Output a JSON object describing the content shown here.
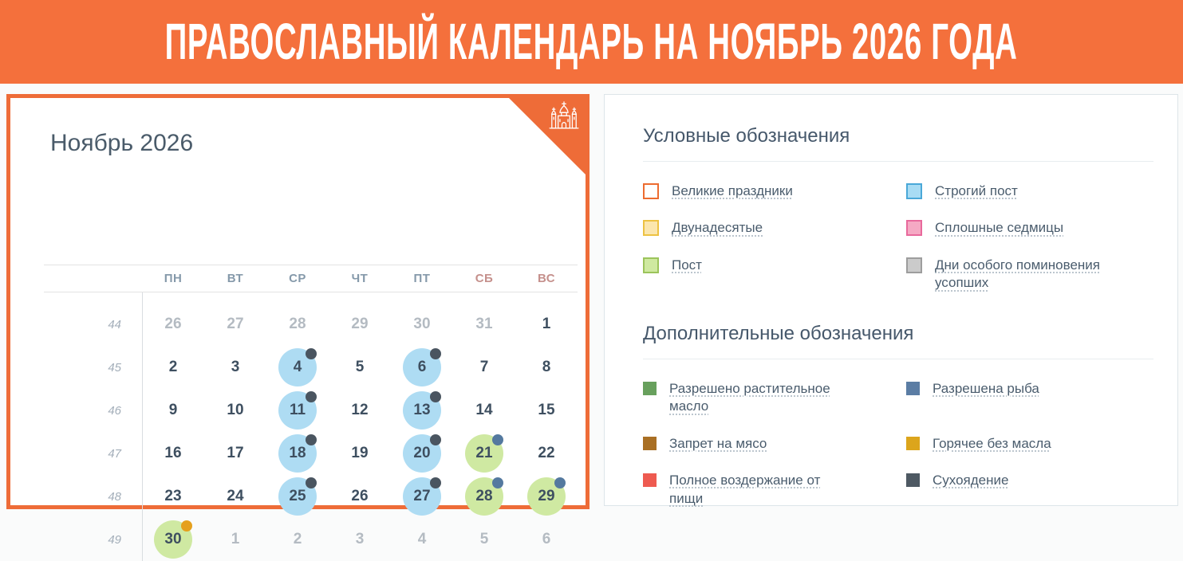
{
  "banner": {
    "title": "ПРАВОСЛАВНЫЙ КАЛЕНДАРЬ НА НОЯБРЬ 2026 ГОДА"
  },
  "colors": {
    "accent_orange": "#f2703c",
    "circle": {
      "strict_fast": "#aedcf3",
      "fast": "#cfe9a2"
    },
    "dot": {
      "dry_eating": "#4a5560",
      "fish_allowed": "#54799f",
      "hot_without_oil": "#e5a01d"
    }
  },
  "calendar": {
    "title": "Ноябрь 2026",
    "weekdays": [
      {
        "label": "ПН",
        "weekend": false
      },
      {
        "label": "ВТ",
        "weekend": false
      },
      {
        "label": "СР",
        "weekend": false
      },
      {
        "label": "ЧТ",
        "weekend": false
      },
      {
        "label": "ПТ",
        "weekend": false
      },
      {
        "label": "СБ",
        "weekend": true
      },
      {
        "label": "ВС",
        "weekend": true
      }
    ],
    "weeks": [
      {
        "num": "44",
        "days": [
          {
            "d": "26",
            "out": true
          },
          {
            "d": "27",
            "out": true
          },
          {
            "d": "28",
            "out": true
          },
          {
            "d": "29",
            "out": true
          },
          {
            "d": "30",
            "out": true
          },
          {
            "d": "31",
            "out": true
          },
          {
            "d": "1"
          }
        ]
      },
      {
        "num": "45",
        "days": [
          {
            "d": "2"
          },
          {
            "d": "3"
          },
          {
            "d": "4",
            "circle": "strict_fast",
            "dot": "dry_eating"
          },
          {
            "d": "5"
          },
          {
            "d": "6",
            "circle": "strict_fast",
            "dot": "dry_eating"
          },
          {
            "d": "7"
          },
          {
            "d": "8"
          }
        ]
      },
      {
        "num": "46",
        "days": [
          {
            "d": "9"
          },
          {
            "d": "10"
          },
          {
            "d": "11",
            "circle": "strict_fast",
            "dot": "dry_eating"
          },
          {
            "d": "12"
          },
          {
            "d": "13",
            "circle": "strict_fast",
            "dot": "dry_eating"
          },
          {
            "d": "14"
          },
          {
            "d": "15"
          }
        ]
      },
      {
        "num": "47",
        "days": [
          {
            "d": "16"
          },
          {
            "d": "17"
          },
          {
            "d": "18",
            "circle": "strict_fast",
            "dot": "dry_eating"
          },
          {
            "d": "19"
          },
          {
            "d": "20",
            "circle": "strict_fast",
            "dot": "dry_eating"
          },
          {
            "d": "21",
            "circle": "fast",
            "dot": "fish_allowed"
          },
          {
            "d": "22"
          }
        ]
      },
      {
        "num": "48",
        "days": [
          {
            "d": "23"
          },
          {
            "d": "24"
          },
          {
            "d": "25",
            "circle": "strict_fast",
            "dot": "dry_eating"
          },
          {
            "d": "26"
          },
          {
            "d": "27",
            "circle": "strict_fast",
            "dot": "dry_eating"
          },
          {
            "d": "28",
            "circle": "fast",
            "dot": "fish_allowed"
          },
          {
            "d": "29",
            "circle": "fast",
            "dot": "fish_allowed"
          }
        ]
      },
      {
        "num": "49",
        "days": [
          {
            "d": "30",
            "circle": "fast",
            "dot": "hot_without_oil"
          },
          {
            "d": "1",
            "out": true
          },
          {
            "d": "2",
            "out": true
          },
          {
            "d": "3",
            "out": true
          },
          {
            "d": "4",
            "out": true
          },
          {
            "d": "5",
            "out": true
          },
          {
            "d": "6",
            "out": true
          }
        ]
      }
    ]
  },
  "legend": {
    "sections": [
      {
        "title": "Условные обозначения",
        "items": [
          {
            "label": "Великие праздники",
            "fill": "#ffffff",
            "border": "#ed6c30",
            "outlined": true
          },
          {
            "label": "Строгий пост",
            "fill": "#a8dcf4",
            "border": "#4aa8d8",
            "outlined": true
          },
          {
            "label": "Двунадесятые",
            "fill": "#fbe6ae",
            "border": "#edc243",
            "outlined": true
          },
          {
            "label": "Сплошные седмицы",
            "fill": "#f5a9c4",
            "border": "#e8699c",
            "outlined": true
          },
          {
            "label": "Пост",
            "fill": "#cfe9a0",
            "border": "#9cc45b",
            "outlined": true
          },
          {
            "label": "Дни особого поминовения усопших",
            "fill": "#cbcbcb",
            "border": "#9d9d9d",
            "outlined": true
          }
        ]
      },
      {
        "title": "Дополнительные обозначения",
        "items": [
          {
            "label": "Разрешено растительное масло",
            "fill": "#68a05d",
            "outlined": false
          },
          {
            "label": "Разрешена рыба",
            "fill": "#5b7da4",
            "outlined": false
          },
          {
            "label": "Запрет на мясо",
            "fill": "#a96f24",
            "outlined": false
          },
          {
            "label": "Горячее без масла",
            "fill": "#dca51c",
            "outlined": false
          },
          {
            "label": "Полное воздержание от пищи",
            "fill": "#ee5a50",
            "outlined": false
          },
          {
            "label": "Сухоядение",
            "fill": "#4e5963",
            "outlined": false
          }
        ]
      }
    ]
  }
}
